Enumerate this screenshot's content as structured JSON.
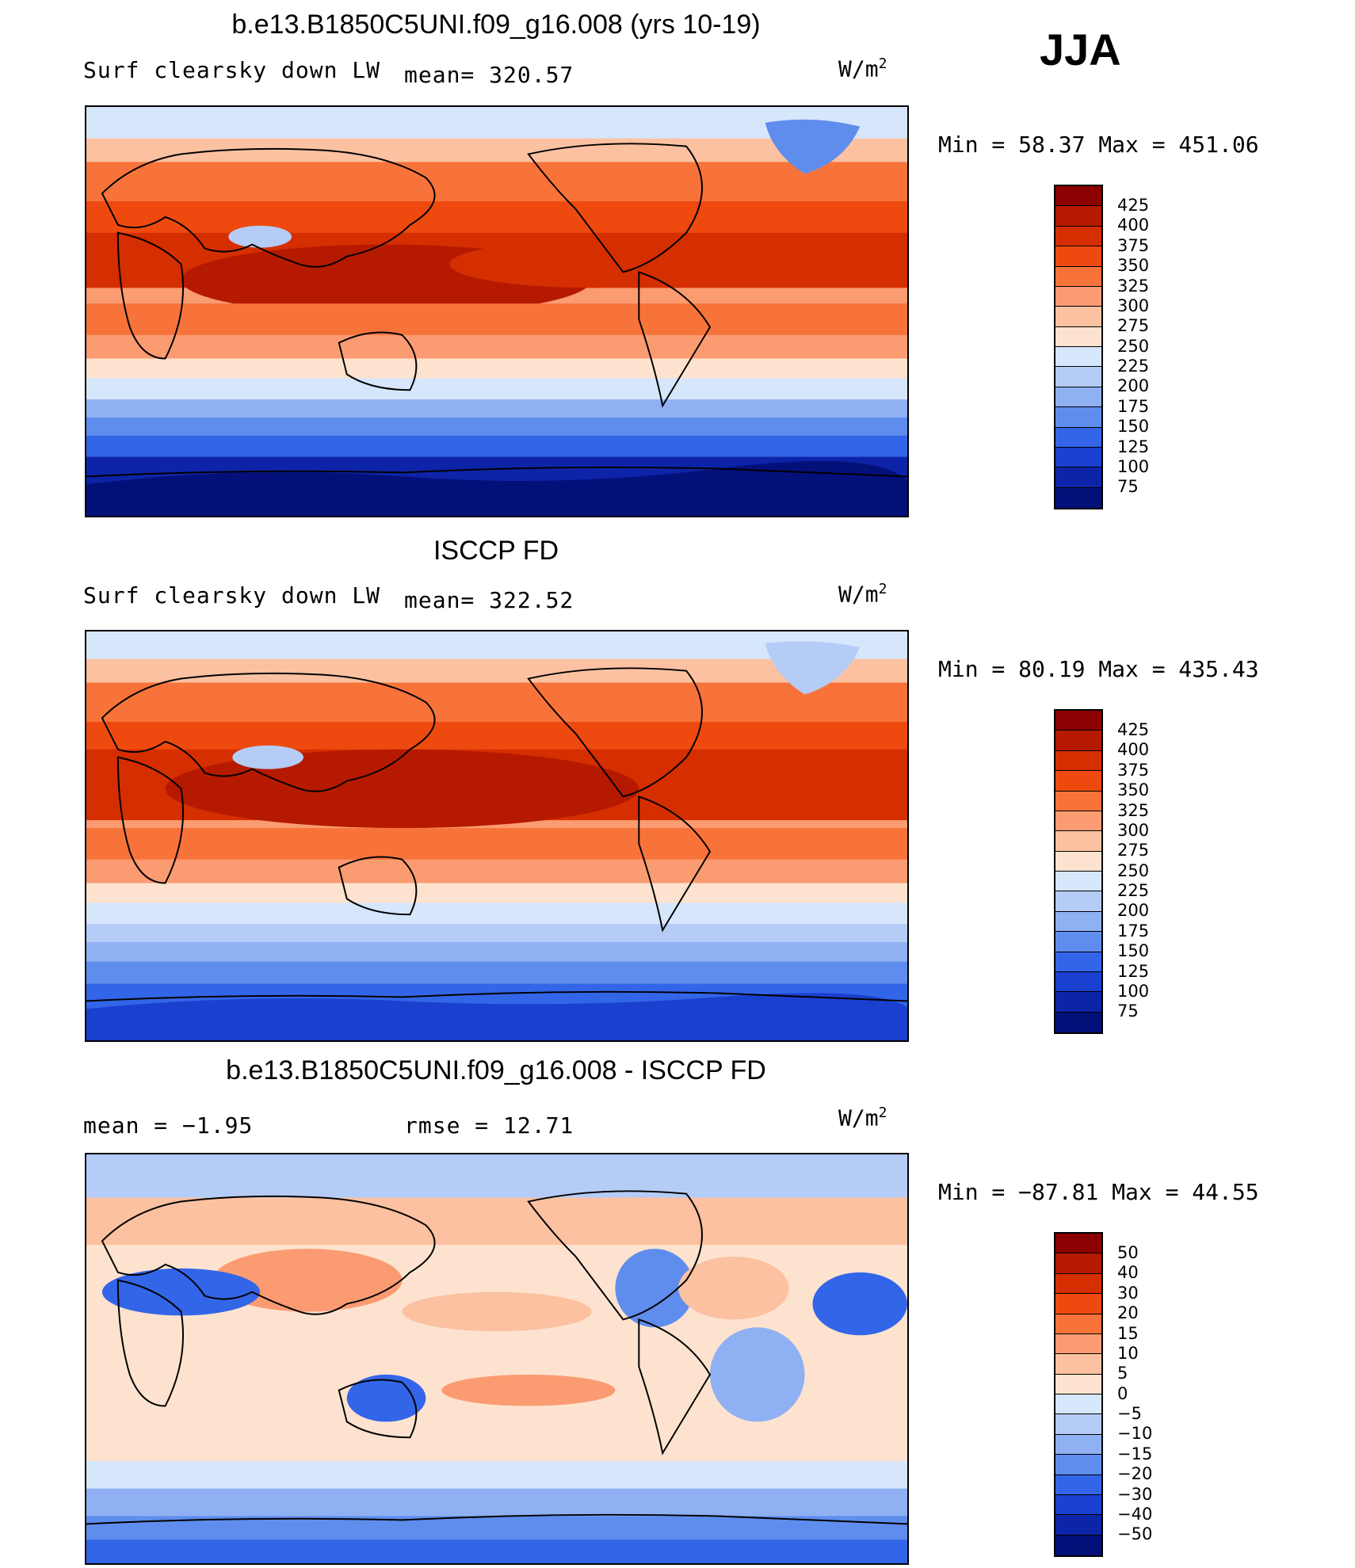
{
  "season": "JJA",
  "panels": [
    {
      "title": "b.e13.B1850C5UNI.f09_g16.008 (yrs 10-19)",
      "left_text": "Surf clearsky down LW",
      "center_text": "mean= 320.57",
      "units_base": "W/m",
      "units_exp": "2",
      "minmax": "Min =   58.37  Max  =  451.06",
      "colorbar": {
        "labels": [
          "425",
          "400",
          "375",
          "350",
          "325",
          "300",
          "275",
          "250",
          "225",
          "200",
          "175",
          "150",
          "125",
          "100",
          "75"
        ],
        "colors": [
          "#8b0000",
          "#b51a00",
          "#d52e00",
          "#ee4a10",
          "#f8733a",
          "#fb9b72",
          "#fcc1a0",
          "#fde3cf",
          "#d6e6fb",
          "#b5ccf7",
          "#8fb0f2",
          "#5f8ded",
          "#3365e8",
          "#1a40cf",
          "#0d24a8",
          "#04107a"
        ]
      },
      "map_style": "absolute"
    },
    {
      "title": "ISCCP FD",
      "left_text": "Surf clearsky down LW",
      "center_text": "mean= 322.52",
      "units_base": "W/m",
      "units_exp": "2",
      "minmax": "Min =   80.19  Max  =  435.43",
      "colorbar": {
        "labels": [
          "425",
          "400",
          "375",
          "350",
          "325",
          "300",
          "275",
          "250",
          "225",
          "200",
          "175",
          "150",
          "125",
          "100",
          "75"
        ],
        "colors": [
          "#8b0000",
          "#b51a00",
          "#d52e00",
          "#ee4a10",
          "#f8733a",
          "#fb9b72",
          "#fcc1a0",
          "#fde3cf",
          "#d6e6fb",
          "#b5ccf7",
          "#8fb0f2",
          "#5f8ded",
          "#3365e8",
          "#1a40cf",
          "#0d24a8",
          "#04107a"
        ]
      },
      "map_style": "absolute"
    },
    {
      "title": "b.e13.B1850C5UNI.f09_g16.008 - ISCCP FD",
      "left_text": "mean =   −1.95",
      "center_text": "rmse =    12.71",
      "units_base": "W/m",
      "units_exp": "2",
      "minmax": "Min = −87.81  Max  =   44.55",
      "colorbar": {
        "labels": [
          "50",
          "40",
          "30",
          "20",
          "15",
          "10",
          "5",
          "0",
          "−5",
          "−10",
          "−15",
          "−20",
          "−30",
          "−40",
          "−50"
        ],
        "colors": [
          "#8b0000",
          "#b51a00",
          "#d52e00",
          "#ee4a10",
          "#f8733a",
          "#fb9b72",
          "#fcc1a0",
          "#fde3cf",
          "#d6e6fb",
          "#b5ccf7",
          "#8fb0f2",
          "#5f8ded",
          "#3365e8",
          "#1a40cf",
          "#0d24a8",
          "#04107a"
        ]
      },
      "map_style": "difference"
    }
  ]
}
